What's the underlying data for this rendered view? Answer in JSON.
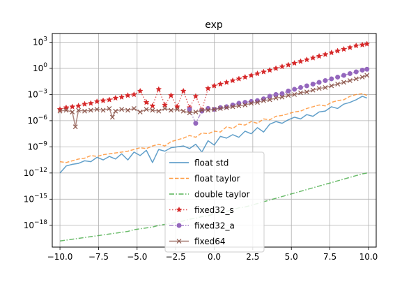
{
  "chart_data": {
    "type": "line",
    "title": "exp",
    "xlabel": "",
    "ylabel": "",
    "xlim": [
      -10.5,
      10.5
    ],
    "ylim_log10": [
      -20.5,
      4.0
    ],
    "yscale": "log",
    "grid": true,
    "legend_position": "lower-center",
    "x_ticks": [
      {
        "value": -10.0,
        "label": "−10.0"
      },
      {
        "value": -7.5,
        "label": "−7.5"
      },
      {
        "value": -5.0,
        "label": "−5.0"
      },
      {
        "value": -2.5,
        "label": "−2.5"
      },
      {
        "value": 0.0,
        "label": "0.0"
      },
      {
        "value": 2.5,
        "label": "2.5"
      },
      {
        "value": 5.0,
        "label": "5.0"
      },
      {
        "value": 7.5,
        "label": "7.5"
      },
      {
        "value": 10.0,
        "label": "10.0"
      }
    ],
    "y_ticks": [
      {
        "exp": 3,
        "base": "10",
        "sup": "3"
      },
      {
        "exp": 0,
        "base": "10",
        "sup": "0"
      },
      {
        "exp": -3,
        "base": "10",
        "sup": "−3"
      },
      {
        "exp": -6,
        "base": "10",
        "sup": "−6"
      },
      {
        "exp": -9,
        "base": "10",
        "sup": "−9"
      },
      {
        "exp": -12,
        "base": "10",
        "sup": "−12"
      },
      {
        "exp": -15,
        "base": "10",
        "sup": "−15"
      },
      {
        "exp": -18,
        "base": "10",
        "sup": "−18"
      }
    ],
    "series": [
      {
        "name": "float std",
        "color": "#1f77b4",
        "style": "solid",
        "marker": "none",
        "x": [
          -10.0,
          -9.6,
          -9.2,
          -8.8,
          -8.4,
          -8.0,
          -7.6,
          -7.2,
          -6.8,
          -6.4,
          -6.0,
          -5.6,
          -5.2,
          -4.8,
          -4.4,
          -4.0,
          -3.6,
          -3.2,
          -2.8,
          -2.4,
          -2.0,
          -1.6,
          -1.2,
          -0.8,
          -0.4,
          0.0,
          0.4,
          0.8,
          1.2,
          1.6,
          2.0,
          2.4,
          2.8,
          3.2,
          3.6,
          4.0,
          4.4,
          4.8,
          5.2,
          5.6,
          6.0,
          6.4,
          6.8,
          7.2,
          7.6,
          8.0,
          8.4,
          8.8,
          9.2,
          9.6,
          9.9
        ],
        "log10_y": [
          -12.0,
          -11.2,
          -11.0,
          -10.9,
          -10.6,
          -10.7,
          -10.2,
          -10.5,
          -10.1,
          -10.4,
          -9.8,
          -10.5,
          -9.6,
          -10.0,
          -9.4,
          -10.8,
          -9.3,
          -9.5,
          -9.1,
          -9.0,
          -8.9,
          -9.2,
          -8.7,
          -9.6,
          -8.3,
          -8.8,
          -7.8,
          -8.0,
          -7.6,
          -7.9,
          -7.2,
          -7.5,
          -6.8,
          -7.3,
          -6.4,
          -6.1,
          -6.3,
          -5.9,
          -5.6,
          -5.8,
          -5.3,
          -5.5,
          -5.0,
          -4.9,
          -4.4,
          -4.6,
          -4.1,
          -3.9,
          -3.6,
          -3.2,
          -3.4
        ]
      },
      {
        "name": "float taylor",
        "color": "#ff7f0e",
        "style": "dashed",
        "marker": "none",
        "x": [
          -10.0,
          -9.6,
          -9.2,
          -8.8,
          -8.4,
          -8.0,
          -7.6,
          -7.2,
          -6.8,
          -6.4,
          -6.0,
          -5.6,
          -5.2,
          -4.8,
          -4.4,
          -4.0,
          -3.6,
          -3.2,
          -2.8,
          -2.4,
          -2.0,
          -1.6,
          -1.2,
          -0.8,
          -0.4,
          0.0,
          0.4,
          0.8,
          1.2,
          1.6,
          2.0,
          2.4,
          2.8,
          3.2,
          3.6,
          4.0,
          4.4,
          4.8,
          5.2,
          5.6,
          6.0,
          6.4,
          6.8,
          7.2,
          7.6,
          8.0,
          8.4,
          8.8,
          9.2,
          9.6,
          9.9
        ],
        "log10_y": [
          -10.7,
          -10.8,
          -10.6,
          -10.4,
          -10.3,
          -10.0,
          -10.1,
          -9.9,
          -9.8,
          -9.7,
          -9.6,
          -9.5,
          -9.3,
          -9.1,
          -9.2,
          -8.9,
          -8.7,
          -8.9,
          -8.4,
          -8.2,
          -8.0,
          -7.7,
          -7.9,
          -7.4,
          -7.5,
          -7.2,
          -7.3,
          -6.7,
          -6.9,
          -6.4,
          -6.5,
          -6.1,
          -6.3,
          -5.8,
          -5.9,
          -5.5,
          -5.4,
          -5.2,
          -5.0,
          -4.9,
          -4.6,
          -4.4,
          -4.2,
          -4.3,
          -3.9,
          -3.7,
          -3.6,
          -3.2,
          -3.0,
          -2.9,
          -3.1
        ]
      },
      {
        "name": "double taylor",
        "color": "#2ca02c",
        "style": "dashdot",
        "marker": "none",
        "x": [
          -10.0,
          -9.6,
          -9.2,
          -8.8,
          -8.4,
          -8.0,
          -7.6,
          -7.2,
          -6.8,
          -6.4,
          -6.0,
          -5.6,
          -5.2,
          -4.8,
          -4.4,
          -4.0,
          -3.6,
          -3.2,
          -2.8,
          -2.4,
          -2.0,
          -1.6,
          -1.2,
          -0.8,
          -0.4,
          0.0,
          0.4,
          0.8,
          1.2,
          1.6,
          2.0,
          2.4,
          2.8,
          3.2,
          3.6,
          4.0,
          4.4,
          4.8,
          5.2,
          5.6,
          6.0,
          6.4,
          6.8,
          7.2,
          7.6,
          8.0,
          8.4,
          8.8,
          9.2,
          9.6,
          9.9
        ],
        "log10_y": [
          -19.8,
          -19.7,
          -19.6,
          -19.5,
          -19.4,
          -19.3,
          -19.2,
          -19.1,
          -19.0,
          -18.9,
          -18.8,
          -18.7,
          -18.5,
          -18.4,
          -18.3,
          -18.2,
          -18.0,
          -17.9,
          -17.8,
          -17.6,
          -17.5,
          -17.3,
          -17.2,
          -17.0,
          -16.9,
          -16.7,
          -16.5,
          -16.4,
          -16.2,
          -16.0,
          -15.9,
          -15.7,
          -15.5,
          -15.3,
          -15.1,
          -14.9,
          -14.7,
          -14.5,
          -14.3,
          -14.1,
          -13.9,
          -13.7,
          -13.5,
          -13.3,
          -13.1,
          -12.9,
          -12.7,
          -12.5,
          -12.3,
          -12.1,
          -12.0
        ]
      },
      {
        "name": "fixed32_s",
        "color": "#d62728",
        "style": "dotted",
        "marker": "star",
        "x": [
          -10.0,
          -9.6,
          -9.2,
          -8.8,
          -8.4,
          -8.0,
          -7.6,
          -7.2,
          -6.8,
          -6.4,
          -6.0,
          -5.6,
          -5.2,
          -4.8,
          -4.4,
          -4.0,
          -3.6,
          -3.2,
          -2.8,
          -2.4,
          -2.0,
          -1.6,
          -1.2,
          -0.8,
          -0.4,
          0.0,
          0.4,
          0.8,
          1.2,
          1.6,
          2.0,
          2.4,
          2.8,
          3.2,
          3.6,
          4.0,
          4.4,
          4.8,
          5.2,
          5.6,
          6.0,
          6.4,
          6.8,
          7.2,
          7.6,
          8.0,
          8.4,
          8.8,
          9.2,
          9.6,
          9.9
        ],
        "log10_y": [
          -4.7,
          -4.5,
          -4.4,
          -4.3,
          -4.1,
          -4.0,
          -3.8,
          -3.7,
          -3.6,
          -3.4,
          -3.3,
          -3.1,
          -3.0,
          -2.6,
          -3.9,
          -4.3,
          -2.4,
          -4.2,
          -3.1,
          -4.4,
          -2.6,
          -4.5,
          -3.2,
          -4.8,
          -2.3,
          -2.0,
          -1.8,
          -1.6,
          -1.4,
          -1.2,
          -1.0,
          -0.8,
          -0.6,
          -0.4,
          -0.2,
          0.0,
          0.2,
          0.4,
          0.6,
          0.8,
          1.0,
          1.2,
          1.4,
          1.6,
          1.8,
          2.0,
          2.2,
          2.4,
          2.6,
          2.7,
          2.8
        ]
      },
      {
        "name": "fixed32_a",
        "color": "#9467bd",
        "style": "dashdotdot",
        "marker": "circle",
        "x": [
          -1.6,
          -1.2,
          -0.8,
          -0.4,
          0.0,
          0.4,
          0.8,
          1.2,
          1.6,
          2.0,
          2.4,
          2.8,
          3.2,
          3.6,
          4.0,
          4.4,
          4.8,
          5.2,
          5.6,
          6.0,
          6.4,
          6.8,
          7.2,
          7.6,
          8.0,
          8.4,
          8.8,
          9.2,
          9.6,
          9.9
        ],
        "log10_y": [
          -4.7,
          -6.3,
          -4.9,
          -4.6,
          -4.7,
          -4.5,
          -4.4,
          -4.2,
          -4.0,
          -3.9,
          -3.8,
          -3.7,
          -3.5,
          -3.2,
          -3.0,
          -2.9,
          -2.6,
          -2.4,
          -2.2,
          -2.0,
          -1.8,
          -1.6,
          -1.4,
          -1.2,
          -1.0,
          -0.8,
          -0.6,
          -0.4,
          -0.2,
          -0.1
        ]
      },
      {
        "name": "fixed64",
        "color": "#8c564b",
        "style": "solid",
        "marker": "x",
        "x": [
          -10.0,
          -9.6,
          -9.2,
          -9.0,
          -8.8,
          -8.4,
          -8.0,
          -7.6,
          -7.2,
          -6.8,
          -6.6,
          -6.4,
          -6.0,
          -5.6,
          -5.2,
          -4.8,
          -4.4,
          -4.0,
          -3.6,
          -3.2,
          -2.8,
          -2.4,
          -2.0,
          -1.6,
          -1.2,
          -0.8,
          -0.4,
          0.0,
          0.4,
          0.8,
          1.2,
          1.6,
          2.0,
          2.4,
          2.8,
          3.2,
          3.6,
          4.0,
          4.4,
          4.8,
          5.2,
          5.6,
          6.0,
          6.4,
          6.8,
          7.2,
          7.6,
          8.0,
          8.4,
          8.8,
          9.2,
          9.6,
          9.9
        ],
        "log10_y": [
          -4.9,
          -4.8,
          -5.0,
          -6.7,
          -4.8,
          -4.9,
          -4.8,
          -4.7,
          -4.8,
          -4.6,
          -5.6,
          -4.9,
          -4.7,
          -4.8,
          -4.6,
          -5.0,
          -4.7,
          -4.8,
          -4.9,
          -4.6,
          -4.8,
          -4.7,
          -4.9,
          -5.1,
          -5.0,
          -4.8,
          -4.8,
          -4.7,
          -4.6,
          -4.5,
          -4.4,
          -4.3,
          -4.2,
          -4.0,
          -3.9,
          -3.7,
          -3.6,
          -3.4,
          -3.3,
          -3.1,
          -3.0,
          -2.8,
          -2.7,
          -2.5,
          -2.3,
          -2.2,
          -2.0,
          -1.8,
          -1.6,
          -1.4,
          -1.2,
          -1.0,
          -0.8
        ]
      }
    ]
  }
}
